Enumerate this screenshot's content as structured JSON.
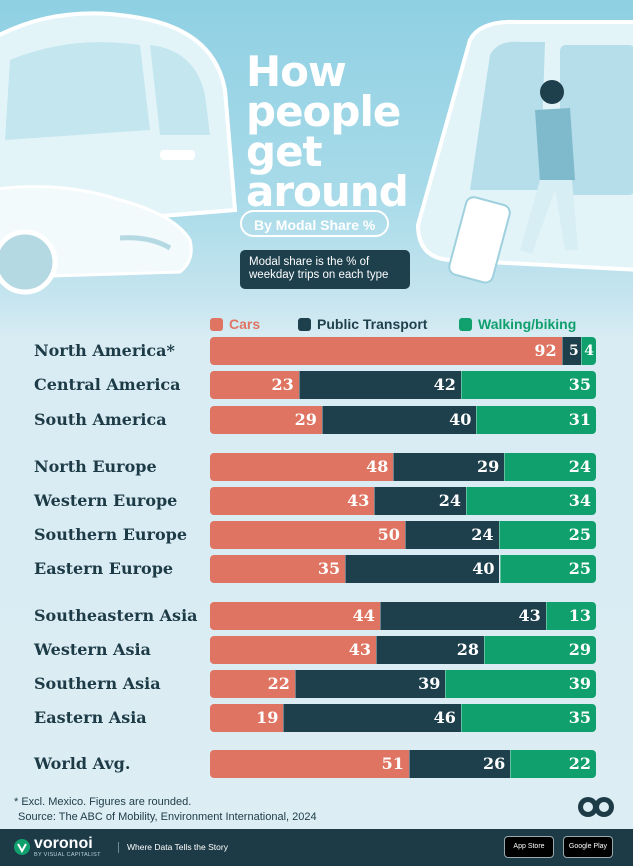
{
  "header": {
    "title_lines": [
      "How",
      "people",
      "get",
      "around"
    ],
    "pill": "By Modal Share %",
    "note_lines": [
      "Modal share is the % of",
      "weekday trips on each type"
    ]
  },
  "colors": {
    "cars": "#e07462",
    "public_transport": "#1e3f4c",
    "walking_biking": "#10a06d",
    "label_text": "#1d3b47"
  },
  "chart_data": {
    "type": "bar",
    "orientation": "horizontal",
    "stacked": true,
    "unit": "%",
    "categories": [
      "North America*",
      "Central America",
      "South America",
      "North Europe",
      "Western Europe",
      "Southern Europe",
      "Eastern Europe",
      "Southeastern Asia",
      "Western Asia",
      "Southern Asia",
      "Eastern Asia",
      "World Avg."
    ],
    "series": [
      {
        "name": "Cars",
        "values": [
          92,
          23,
          29,
          48,
          43,
          50,
          35,
          44,
          43,
          22,
          19,
          51
        ]
      },
      {
        "name": "Public Transport",
        "values": [
          5,
          42,
          40,
          29,
          24,
          24,
          40,
          43,
          28,
          39,
          46,
          26
        ]
      },
      {
        "name": "Walking/biking",
        "values": [
          4,
          35,
          31,
          24,
          34,
          25,
          25,
          13,
          29,
          39,
          35,
          22
        ]
      }
    ],
    "legend_position": "top"
  },
  "footer": {
    "footnote": "* Excl. Mexico. Figures are rounded.",
    "source": "Source: The ABC of Mobility, Environment International, 2024",
    "brand": "voronoi",
    "brand_sub": "BY VISUAL CAPITALIST",
    "tagline": "Where Data Tells the Story",
    "app_store": "App Store",
    "google_play": "Google Play"
  }
}
